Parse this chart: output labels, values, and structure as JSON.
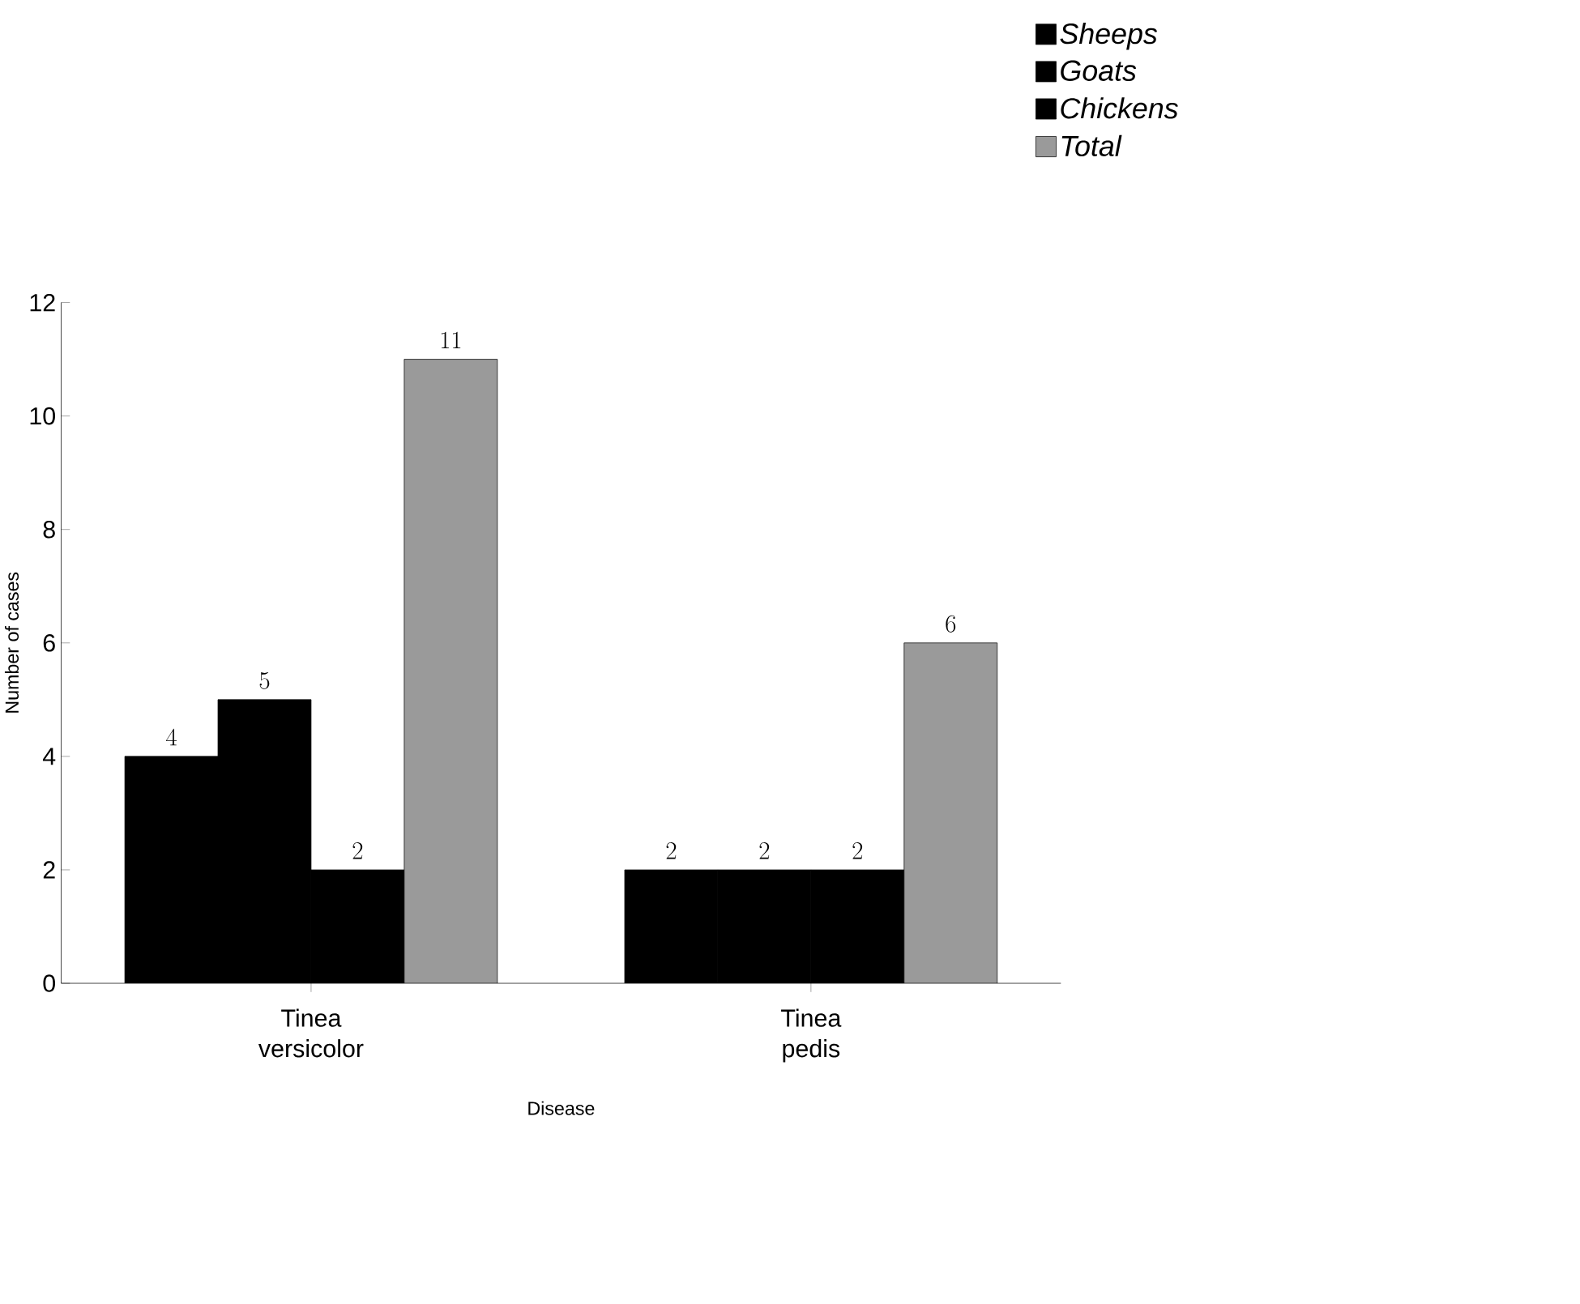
{
  "chart_data": {
    "type": "bar",
    "xlabel": "Disease",
    "ylabel": "Number of cases",
    "categories": [
      "Tinea versicolor",
      "Tinea pedis"
    ],
    "series": [
      {
        "name": "Sheeps",
        "color": "#000000",
        "values": [
          4,
          2
        ]
      },
      {
        "name": "Goats",
        "color": "#000000",
        "values": [
          5,
          2
        ]
      },
      {
        "name": "Chickens",
        "color": "#000000",
        "values": [
          2,
          2
        ]
      },
      {
        "name": "Total",
        "color": "#9a9a9a",
        "values": [
          11,
          6
        ]
      }
    ],
    "ylim": [
      0,
      12
    ],
    "yticks": [
      0,
      2,
      4,
      6,
      8,
      10,
      12
    ],
    "data_labels": true,
    "legend": "top right",
    "grid": false
  }
}
